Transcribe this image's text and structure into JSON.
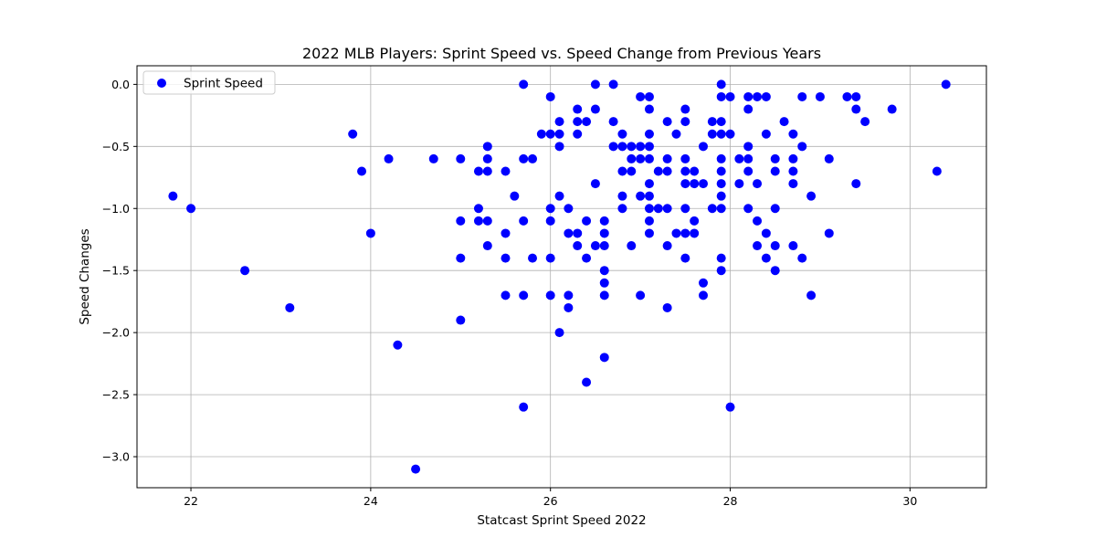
{
  "chart_data": {
    "type": "scatter",
    "title": "2022 MLB Players: Sprint Speed vs. Speed Change from Previous Years",
    "xlabel": "Statcast Sprint Speed 2022",
    "ylabel": "Speed Changes",
    "xlim": [
      21.4,
      30.85
    ],
    "ylim": [
      -3.25,
      0.15
    ],
    "xticks": [
      22,
      24,
      26,
      28,
      30
    ],
    "yticks": [
      0.0,
      -0.5,
      -1.0,
      -1.5,
      -2.0,
      -2.5,
      -3.0
    ],
    "xtick_labels": [
      "22",
      "24",
      "26",
      "28",
      "30"
    ],
    "ytick_labels": [
      "0.0",
      "−0.5",
      "−1.0",
      "−1.5",
      "−2.0",
      "−2.5",
      "−3.0"
    ],
    "grid": true,
    "legend_position": "top-left",
    "point_color": "#0000ff",
    "series": [
      {
        "name": "Sprint Speed",
        "points": [
          [
            21.8,
            -0.9
          ],
          [
            22.0,
            -1.0
          ],
          [
            22.6,
            -1.5
          ],
          [
            23.1,
            -1.8
          ],
          [
            23.8,
            -0.4
          ],
          [
            23.9,
            -0.7
          ],
          [
            24.0,
            -1.2
          ],
          [
            24.2,
            -0.6
          ],
          [
            24.3,
            -2.1
          ],
          [
            24.5,
            -3.1
          ],
          [
            24.7,
            -0.6
          ],
          [
            25.0,
            -0.6
          ],
          [
            25.0,
            -1.1
          ],
          [
            25.0,
            -1.4
          ],
          [
            25.0,
            -1.9
          ],
          [
            25.2,
            -0.7
          ],
          [
            25.2,
            -1.0
          ],
          [
            25.2,
            -1.1
          ],
          [
            25.3,
            -0.5
          ],
          [
            25.3,
            -0.6
          ],
          [
            25.3,
            -0.7
          ],
          [
            25.3,
            -1.1
          ],
          [
            25.3,
            -1.3
          ],
          [
            25.5,
            -0.7
          ],
          [
            25.5,
            -1.2
          ],
          [
            25.5,
            -1.4
          ],
          [
            25.5,
            -1.7
          ],
          [
            25.6,
            -0.9
          ],
          [
            25.7,
            0.0
          ],
          [
            25.7,
            -0.6
          ],
          [
            25.7,
            -1.1
          ],
          [
            25.7,
            -1.7
          ],
          [
            25.7,
            -2.6
          ],
          [
            25.8,
            -0.6
          ],
          [
            25.8,
            -1.4
          ],
          [
            25.9,
            -0.4
          ],
          [
            26.0,
            -0.1
          ],
          [
            26.0,
            -0.4
          ],
          [
            26.0,
            -1.0
          ],
          [
            26.0,
            -1.1
          ],
          [
            26.0,
            -1.4
          ],
          [
            26.0,
            -1.7
          ],
          [
            26.1,
            -0.3
          ],
          [
            26.1,
            -0.4
          ],
          [
            26.1,
            -0.5
          ],
          [
            26.1,
            -0.9
          ],
          [
            26.1,
            -2.0
          ],
          [
            26.2,
            -1.0
          ],
          [
            26.2,
            -1.2
          ],
          [
            26.2,
            -1.7
          ],
          [
            26.2,
            -1.8
          ],
          [
            26.3,
            -0.2
          ],
          [
            26.3,
            -0.3
          ],
          [
            26.3,
            -0.4
          ],
          [
            26.3,
            -1.2
          ],
          [
            26.3,
            -1.3
          ],
          [
            26.4,
            -0.3
          ],
          [
            26.4,
            -1.1
          ],
          [
            26.4,
            -1.4
          ],
          [
            26.4,
            -2.4
          ],
          [
            26.5,
            0.0
          ],
          [
            26.5,
            -0.2
          ],
          [
            26.5,
            -0.8
          ],
          [
            26.5,
            -1.3
          ],
          [
            26.6,
            -1.1
          ],
          [
            26.6,
            -1.2
          ],
          [
            26.6,
            -1.3
          ],
          [
            26.6,
            -1.5
          ],
          [
            26.6,
            -1.6
          ],
          [
            26.6,
            -1.7
          ],
          [
            26.6,
            -2.2
          ],
          [
            26.7,
            0.0
          ],
          [
            26.7,
            -0.3
          ],
          [
            26.7,
            -0.5
          ],
          [
            26.8,
            -0.4
          ],
          [
            26.8,
            -0.5
          ],
          [
            26.8,
            -0.7
          ],
          [
            26.8,
            -0.9
          ],
          [
            26.8,
            -1.0
          ],
          [
            26.9,
            -0.5
          ],
          [
            26.9,
            -0.6
          ],
          [
            26.9,
            -0.7
          ],
          [
            26.9,
            -1.3
          ],
          [
            27.0,
            -0.1
          ],
          [
            27.0,
            -0.5
          ],
          [
            27.0,
            -0.6
          ],
          [
            27.0,
            -0.9
          ],
          [
            27.0,
            -1.7
          ],
          [
            27.1,
            -0.1
          ],
          [
            27.1,
            -0.2
          ],
          [
            27.1,
            -0.4
          ],
          [
            27.1,
            -0.5
          ],
          [
            27.1,
            -0.6
          ],
          [
            27.1,
            -0.8
          ],
          [
            27.1,
            -0.9
          ],
          [
            27.1,
            -1.0
          ],
          [
            27.1,
            -1.1
          ],
          [
            27.1,
            -1.2
          ],
          [
            27.2,
            -0.7
          ],
          [
            27.2,
            -1.0
          ],
          [
            27.3,
            -0.3
          ],
          [
            27.3,
            -0.6
          ],
          [
            27.3,
            -0.7
          ],
          [
            27.3,
            -1.0
          ],
          [
            27.3,
            -1.3
          ],
          [
            27.3,
            -1.8
          ],
          [
            27.4,
            -0.4
          ],
          [
            27.4,
            -1.2
          ],
          [
            27.5,
            -0.2
          ],
          [
            27.5,
            -0.3
          ],
          [
            27.5,
            -0.6
          ],
          [
            27.5,
            -0.7
          ],
          [
            27.5,
            -0.8
          ],
          [
            27.5,
            -1.0
          ],
          [
            27.5,
            -1.2
          ],
          [
            27.5,
            -1.4
          ],
          [
            27.6,
            -0.7
          ],
          [
            27.6,
            -0.8
          ],
          [
            27.6,
            -1.1
          ],
          [
            27.6,
            -1.2
          ],
          [
            27.7,
            -0.5
          ],
          [
            27.7,
            -0.8
          ],
          [
            27.7,
            -1.6
          ],
          [
            27.7,
            -1.7
          ],
          [
            27.8,
            -0.3
          ],
          [
            27.8,
            -0.4
          ],
          [
            27.8,
            -1.0
          ],
          [
            27.9,
            0.0
          ],
          [
            27.9,
            -0.1
          ],
          [
            27.9,
            -0.3
          ],
          [
            27.9,
            -0.4
          ],
          [
            27.9,
            -0.6
          ],
          [
            27.9,
            -0.7
          ],
          [
            27.9,
            -0.8
          ],
          [
            27.9,
            -0.9
          ],
          [
            27.9,
            -1.0
          ],
          [
            27.9,
            -1.4
          ],
          [
            27.9,
            -1.5
          ],
          [
            28.0,
            -0.1
          ],
          [
            28.0,
            -0.4
          ],
          [
            28.0,
            -2.6
          ],
          [
            28.1,
            -0.6
          ],
          [
            28.1,
            -0.8
          ],
          [
            28.2,
            -0.1
          ],
          [
            28.2,
            -0.2
          ],
          [
            28.2,
            -0.5
          ],
          [
            28.2,
            -0.6
          ],
          [
            28.2,
            -0.7
          ],
          [
            28.2,
            -1.0
          ],
          [
            28.3,
            -0.1
          ],
          [
            28.3,
            -0.8
          ],
          [
            28.3,
            -1.1
          ],
          [
            28.3,
            -1.3
          ],
          [
            28.4,
            -0.1
          ],
          [
            28.4,
            -0.4
          ],
          [
            28.4,
            -1.2
          ],
          [
            28.4,
            -1.4
          ],
          [
            28.5,
            -0.6
          ],
          [
            28.5,
            -0.7
          ],
          [
            28.5,
            -1.0
          ],
          [
            28.5,
            -1.3
          ],
          [
            28.5,
            -1.5
          ],
          [
            28.6,
            -0.3
          ],
          [
            28.7,
            -0.4
          ],
          [
            28.7,
            -0.6
          ],
          [
            28.7,
            -0.7
          ],
          [
            28.7,
            -0.8
          ],
          [
            28.7,
            -1.3
          ],
          [
            28.8,
            -0.1
          ],
          [
            28.8,
            -0.5
          ],
          [
            28.8,
            -1.4
          ],
          [
            28.9,
            -0.9
          ],
          [
            28.9,
            -1.7
          ],
          [
            29.0,
            -0.1
          ],
          [
            29.1,
            -0.6
          ],
          [
            29.1,
            -1.2
          ],
          [
            29.3,
            -0.1
          ],
          [
            29.4,
            -0.1
          ],
          [
            29.4,
            -0.2
          ],
          [
            29.4,
            -0.8
          ],
          [
            29.5,
            -0.3
          ],
          [
            29.8,
            -0.2
          ],
          [
            30.3,
            -0.7
          ],
          [
            30.4,
            0.0
          ]
        ]
      }
    ]
  }
}
